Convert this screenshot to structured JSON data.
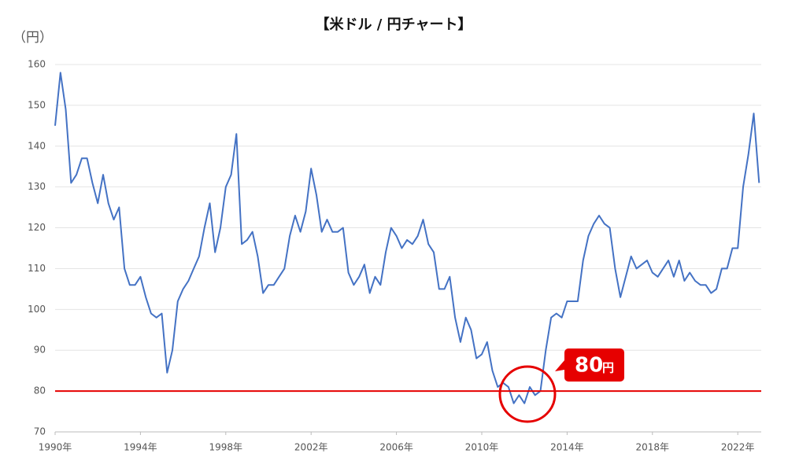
{
  "chart_data": {
    "type": "line",
    "title": "【米ドル / 円チャート】",
    "y_label": "（円）",
    "x": [
      1990,
      1990.25,
      1990.5,
      1990.75,
      1991,
      1991.25,
      1991.5,
      1991.75,
      1992,
      1992.25,
      1992.5,
      1992.75,
      1993,
      1993.25,
      1993.5,
      1993.75,
      1994,
      1994.25,
      1994.5,
      1994.75,
      1995,
      1995.25,
      1995.5,
      1995.75,
      1996,
      1996.25,
      1996.5,
      1996.75,
      1997,
      1997.25,
      1997.5,
      1997.75,
      1998,
      1998.25,
      1998.5,
      1998.75,
      1999,
      1999.25,
      1999.5,
      1999.75,
      2000,
      2000.25,
      2000.5,
      2000.75,
      2001,
      2001.25,
      2001.5,
      2001.75,
      2002,
      2002.25,
      2002.5,
      2002.75,
      2003,
      2003.25,
      2003.5,
      2003.75,
      2004,
      2004.25,
      2004.5,
      2004.75,
      2005,
      2005.25,
      2005.5,
      2005.75,
      2006,
      2006.25,
      2006.5,
      2006.75,
      2007,
      2007.25,
      2007.5,
      2007.75,
      2008,
      2008.25,
      2008.5,
      2008.75,
      2009,
      2009.25,
      2009.5,
      2009.75,
      2010,
      2010.25,
      2010.5,
      2010.75,
      2011,
      2011.25,
      2011.5,
      2011.75,
      2012,
      2012.25,
      2012.5,
      2012.75,
      2013,
      2013.25,
      2013.5,
      2013.75,
      2014,
      2014.25,
      2014.5,
      2014.75,
      2015,
      2015.25,
      2015.5,
      2015.75,
      2016,
      2016.25,
      2016.5,
      2016.75,
      2017,
      2017.25,
      2017.5,
      2017.75,
      2018,
      2018.25,
      2018.5,
      2018.75,
      2019,
      2019.25,
      2019.5,
      2019.75,
      2020,
      2020.25,
      2020.5,
      2020.75,
      2021,
      2021.25,
      2021.5,
      2021.75,
      2022,
      2022.25,
      2022.5,
      2022.75,
      2023
    ],
    "series": [
      {
        "name": "USD/JPY",
        "color": "#4472c4",
        "values": [
          145,
          158,
          149,
          131,
          133,
          137,
          137,
          131,
          126,
          133,
          126,
          122,
          125,
          110,
          106,
          106,
          108,
          103,
          99,
          98,
          99,
          84.5,
          90,
          102,
          105,
          107,
          110,
          113,
          120,
          126,
          114,
          120,
          130,
          133,
          143,
          116,
          117,
          119,
          113,
          104,
          106,
          106,
          108,
          110,
          118,
          123,
          119,
          124,
          134.5,
          128,
          119,
          122,
          119,
          119,
          120,
          109,
          106,
          108,
          111,
          104,
          108,
          106,
          114,
          120,
          118,
          115,
          117,
          116,
          118,
          122,
          116,
          114,
          105,
          105,
          108,
          98,
          92,
          98,
          95,
          88,
          89,
          92,
          85,
          81,
          82,
          81,
          77,
          79,
          77,
          81,
          79,
          80,
          90,
          98,
          99,
          98,
          102,
          102,
          102,
          112,
          118,
          121,
          123,
          121,
          120,
          110,
          103,
          108,
          113,
          110,
          111,
          112,
          109,
          108,
          110,
          112,
          108,
          112,
          107,
          109,
          107,
          106,
          106,
          104,
          105,
          110,
          110,
          115,
          115,
          130,
          138,
          148,
          131
        ]
      }
    ],
    "xlim": [
      1990,
      2023.1
    ],
    "xticks": [
      {
        "value": 1990,
        "label": "1990年"
      },
      {
        "value": 1994,
        "label": "1994年"
      },
      {
        "value": 1998,
        "label": "1998年"
      },
      {
        "value": 2002,
        "label": "2002年"
      },
      {
        "value": 2006,
        "label": "2006年"
      },
      {
        "value": 2010,
        "label": "2010年"
      },
      {
        "value": 2014,
        "label": "2014年"
      },
      {
        "value": 2018,
        "label": "2018年"
      },
      {
        "value": 2022,
        "label": "2022年"
      }
    ],
    "ylim": [
      70,
      160
    ],
    "yticks": [
      70,
      80,
      90,
      100,
      110,
      120,
      130,
      140,
      150,
      160
    ],
    "grid": true,
    "hline": {
      "value": 80,
      "label": "80",
      "unit": "円",
      "color": "#e60000"
    }
  }
}
